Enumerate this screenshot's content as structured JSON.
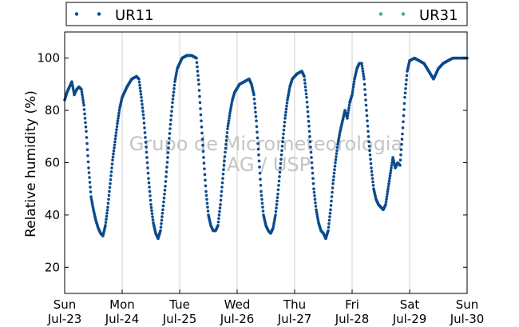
{
  "chart_data": {
    "type": "scatter",
    "title": "",
    "ylabel": "Relative humidity (%)",
    "xlabel": "",
    "x_ticks": [
      {
        "day": "Sun",
        "date": "Jul-23"
      },
      {
        "day": "Mon",
        "date": "Jul-24"
      },
      {
        "day": "Tue",
        "date": "Jul-25"
      },
      {
        "day": "Wed",
        "date": "Jul-26"
      },
      {
        "day": "Thu",
        "date": "Jul-27"
      },
      {
        "day": "Fri",
        "date": "Jul-28"
      },
      {
        "day": "Sat",
        "date": "Jul-29"
      },
      {
        "day": "Sun",
        "date": "Jul-30"
      }
    ],
    "xlim": [
      "2023-07-23 00:00",
      "2023-07-30 00:00"
    ],
    "ylim": [
      10,
      110
    ],
    "y_ticks": [
      20,
      40,
      60,
      80,
      100
    ],
    "grid": "vertical lines at each day",
    "legend_position": "top, above plot",
    "watermark": [
      "Grupo de Micrometeorologia",
      "IAG / USP"
    ],
    "series": [
      {
        "name": "UR11",
        "color": "#0b4a8c",
        "marker": "dot",
        "points": [
          [
            "2023-07-23 00:00",
            84
          ],
          [
            "2023-07-23 01:00",
            87
          ],
          [
            "2023-07-23 02:00",
            89
          ],
          [
            "2023-07-23 03:00",
            91
          ],
          [
            "2023-07-23 04:00",
            86
          ],
          [
            "2023-07-23 05:00",
            88
          ],
          [
            "2023-07-23 06:00",
            89
          ],
          [
            "2023-07-23 07:00",
            88
          ],
          [
            "2023-07-23 08:00",
            82
          ],
          [
            "2023-07-23 09:00",
            72
          ],
          [
            "2023-07-23 10:00",
            58
          ],
          [
            "2023-07-23 11:00",
            47
          ],
          [
            "2023-07-23 12:00",
            42
          ],
          [
            "2023-07-23 13:00",
            38
          ],
          [
            "2023-07-23 14:00",
            35
          ],
          [
            "2023-07-23 15:00",
            33
          ],
          [
            "2023-07-23 16:00",
            32
          ],
          [
            "2023-07-23 17:00",
            36
          ],
          [
            "2023-07-23 18:00",
            43
          ],
          [
            "2023-07-23 19:00",
            52
          ],
          [
            "2023-07-23 20:00",
            61
          ],
          [
            "2023-07-23 21:00",
            68
          ],
          [
            "2023-07-23 22:00",
            75
          ],
          [
            "2023-07-23 23:00",
            81
          ],
          [
            "2023-07-24 00:00",
            85
          ],
          [
            "2023-07-24 02:00",
            89
          ],
          [
            "2023-07-24 04:00",
            92
          ],
          [
            "2023-07-24 06:00",
            93
          ],
          [
            "2023-07-24 07:00",
            92
          ],
          [
            "2023-07-24 08:00",
            85
          ],
          [
            "2023-07-24 09:00",
            77
          ],
          [
            "2023-07-24 10:00",
            66
          ],
          [
            "2023-07-24 11:00",
            54
          ],
          [
            "2023-07-24 12:00",
            44
          ],
          [
            "2023-07-24 13:00",
            37
          ],
          [
            "2023-07-24 14:00",
            33
          ],
          [
            "2023-07-24 15:00",
            31
          ],
          [
            "2023-07-24 16:00",
            34
          ],
          [
            "2023-07-24 17:00",
            42
          ],
          [
            "2023-07-24 18:00",
            51
          ],
          [
            "2023-07-24 19:00",
            62
          ],
          [
            "2023-07-24 20:00",
            73
          ],
          [
            "2023-07-24 21:00",
            83
          ],
          [
            "2023-07-24 22:00",
            91
          ],
          [
            "2023-07-24 23:00",
            96
          ],
          [
            "2023-07-25 00:00",
            98
          ],
          [
            "2023-07-25 01:00",
            100
          ],
          [
            "2023-07-25 03:00",
            101
          ],
          [
            "2023-07-25 05:00",
            101
          ],
          [
            "2023-07-25 07:00",
            100
          ],
          [
            "2023-07-25 08:00",
            90
          ],
          [
            "2023-07-25 09:00",
            76
          ],
          [
            "2023-07-25 10:00",
            62
          ],
          [
            "2023-07-25 11:00",
            49
          ],
          [
            "2023-07-25 12:00",
            40
          ],
          [
            "2023-07-25 13:00",
            36
          ],
          [
            "2023-07-25 14:00",
            34
          ],
          [
            "2023-07-25 15:00",
            34
          ],
          [
            "2023-07-25 16:00",
            36
          ],
          [
            "2023-07-25 17:00",
            44
          ],
          [
            "2023-07-25 18:00",
            54
          ],
          [
            "2023-07-25 19:00",
            64
          ],
          [
            "2023-07-25 20:00",
            73
          ],
          [
            "2023-07-25 21:00",
            79
          ],
          [
            "2023-07-25 22:00",
            84
          ],
          [
            "2023-07-25 23:00",
            87
          ],
          [
            "2023-07-26 01:00",
            90
          ],
          [
            "2023-07-26 03:00",
            91
          ],
          [
            "2023-07-26 05:00",
            92
          ],
          [
            "2023-07-26 06:00",
            90
          ],
          [
            "2023-07-26 07:00",
            86
          ],
          [
            "2023-07-26 08:00",
            76
          ],
          [
            "2023-07-26 09:00",
            63
          ],
          [
            "2023-07-26 10:00",
            49
          ],
          [
            "2023-07-26 11:00",
            40
          ],
          [
            "2023-07-26 12:00",
            36
          ],
          [
            "2023-07-26 13:00",
            34
          ],
          [
            "2023-07-26 14:00",
            33
          ],
          [
            "2023-07-26 15:00",
            35
          ],
          [
            "2023-07-26 16:00",
            40
          ],
          [
            "2023-07-26 17:00",
            48
          ],
          [
            "2023-07-26 18:00",
            58
          ],
          [
            "2023-07-26 19:00",
            68
          ],
          [
            "2023-07-26 20:00",
            77
          ],
          [
            "2023-07-26 21:00",
            84
          ],
          [
            "2023-07-26 22:00",
            89
          ],
          [
            "2023-07-26 23:00",
            92
          ],
          [
            "2023-07-27 01:00",
            94
          ],
          [
            "2023-07-27 03:00",
            95
          ],
          [
            "2023-07-27 04:00",
            93
          ],
          [
            "2023-07-27 05:00",
            85
          ],
          [
            "2023-07-27 06:00",
            74
          ],
          [
            "2023-07-27 07:00",
            62
          ],
          [
            "2023-07-27 08:00",
            50
          ],
          [
            "2023-07-27 09:00",
            42
          ],
          [
            "2023-07-27 10:00",
            37
          ],
          [
            "2023-07-27 11:00",
            34
          ],
          [
            "2023-07-27 12:00",
            33
          ],
          [
            "2023-07-27 13:00",
            31
          ],
          [
            "2023-07-27 14:00",
            34
          ],
          [
            "2023-07-27 15:00",
            42
          ],
          [
            "2023-07-27 16:00",
            52
          ],
          [
            "2023-07-27 17:00",
            60
          ],
          [
            "2023-07-27 18:00",
            67
          ],
          [
            "2023-07-27 19:00",
            72
          ],
          [
            "2023-07-27 20:00",
            76
          ],
          [
            "2023-07-27 21:00",
            80
          ],
          [
            "2023-07-27 22:00",
            77
          ],
          [
            "2023-07-27 23:00",
            83
          ],
          [
            "2023-07-28 00:00",
            86
          ],
          [
            "2023-07-28 01:00",
            92
          ],
          [
            "2023-07-28 02:00",
            96
          ],
          [
            "2023-07-28 03:00",
            98
          ],
          [
            "2023-07-28 04:00",
            98
          ],
          [
            "2023-07-28 05:00",
            92
          ],
          [
            "2023-07-28 06:00",
            80
          ],
          [
            "2023-07-28 07:00",
            68
          ],
          [
            "2023-07-28 08:00",
            58
          ],
          [
            "2023-07-28 09:00",
            50
          ],
          [
            "2023-07-28 10:00",
            46
          ],
          [
            "2023-07-28 11:00",
            44
          ],
          [
            "2023-07-28 12:00",
            43
          ],
          [
            "2023-07-28 13:00",
            42
          ],
          [
            "2023-07-28 14:00",
            44
          ],
          [
            "2023-07-28 15:00",
            50
          ],
          [
            "2023-07-28 16:00",
            56
          ],
          [
            "2023-07-28 17:00",
            62
          ],
          [
            "2023-07-28 18:00",
            58
          ],
          [
            "2023-07-28 19:00",
            60
          ],
          [
            "2023-07-28 20:00",
            59
          ],
          [
            "2023-07-28 21:00",
            71
          ],
          [
            "2023-07-28 22:00",
            85
          ],
          [
            "2023-07-28 23:00",
            95
          ],
          [
            "2023-07-29 00:00",
            99
          ],
          [
            "2023-07-29 02:00",
            100
          ],
          [
            "2023-07-29 04:00",
            99
          ],
          [
            "2023-07-29 06:00",
            98
          ],
          [
            "2023-07-29 08:00",
            95
          ],
          [
            "2023-07-29 10:00",
            92
          ],
          [
            "2023-07-29 12:00",
            96
          ],
          [
            "2023-07-29 14:00",
            98
          ],
          [
            "2023-07-29 16:00",
            99
          ],
          [
            "2023-07-29 18:00",
            100
          ],
          [
            "2023-07-29 20:00",
            100
          ],
          [
            "2023-07-29 22:00",
            100
          ],
          [
            "2023-07-30 00:00",
            100
          ]
        ]
      },
      {
        "name": "UR31",
        "color": "#3cb371",
        "marker": "dot",
        "points": []
      }
    ]
  }
}
